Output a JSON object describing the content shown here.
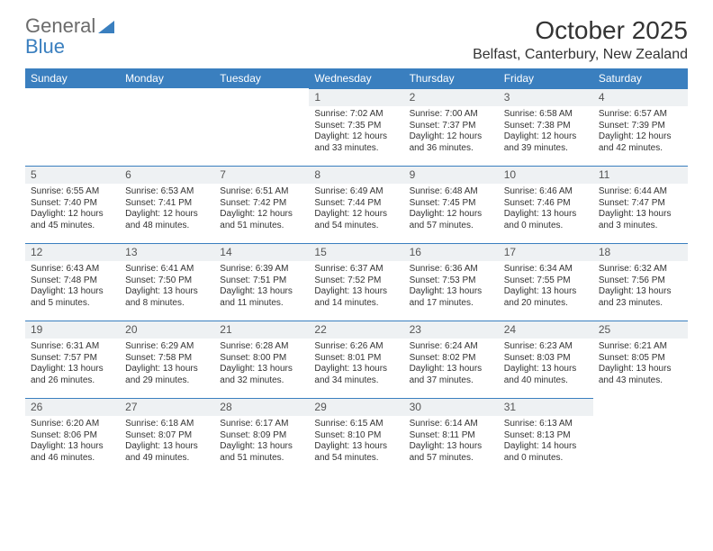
{
  "logo": {
    "text_a": "General",
    "text_b": "Blue"
  },
  "header": {
    "month_title": "October 2025",
    "location": "Belfast, Canterbury, New Zealand"
  },
  "theme": {
    "accent": "#3a7fbf",
    "daynum_bg": "#eef1f3",
    "text": "#333333",
    "logo_gray": "#6b6b6b"
  },
  "day_labels": [
    "Sunday",
    "Monday",
    "Tuesday",
    "Wednesday",
    "Thursday",
    "Friday",
    "Saturday"
  ],
  "weeks": [
    [
      null,
      null,
      null,
      {
        "n": "1",
        "sr": "Sunrise: 7:02 AM",
        "ss": "Sunset: 7:35 PM",
        "d1": "Daylight: 12 hours",
        "d2": "and 33 minutes."
      },
      {
        "n": "2",
        "sr": "Sunrise: 7:00 AM",
        "ss": "Sunset: 7:37 PM",
        "d1": "Daylight: 12 hours",
        "d2": "and 36 minutes."
      },
      {
        "n": "3",
        "sr": "Sunrise: 6:58 AM",
        "ss": "Sunset: 7:38 PM",
        "d1": "Daylight: 12 hours",
        "d2": "and 39 minutes."
      },
      {
        "n": "4",
        "sr": "Sunrise: 6:57 AM",
        "ss": "Sunset: 7:39 PM",
        "d1": "Daylight: 12 hours",
        "d2": "and 42 minutes."
      }
    ],
    [
      {
        "n": "5",
        "sr": "Sunrise: 6:55 AM",
        "ss": "Sunset: 7:40 PM",
        "d1": "Daylight: 12 hours",
        "d2": "and 45 minutes."
      },
      {
        "n": "6",
        "sr": "Sunrise: 6:53 AM",
        "ss": "Sunset: 7:41 PM",
        "d1": "Daylight: 12 hours",
        "d2": "and 48 minutes."
      },
      {
        "n": "7",
        "sr": "Sunrise: 6:51 AM",
        "ss": "Sunset: 7:42 PM",
        "d1": "Daylight: 12 hours",
        "d2": "and 51 minutes."
      },
      {
        "n": "8",
        "sr": "Sunrise: 6:49 AM",
        "ss": "Sunset: 7:44 PM",
        "d1": "Daylight: 12 hours",
        "d2": "and 54 minutes."
      },
      {
        "n": "9",
        "sr": "Sunrise: 6:48 AM",
        "ss": "Sunset: 7:45 PM",
        "d1": "Daylight: 12 hours",
        "d2": "and 57 minutes."
      },
      {
        "n": "10",
        "sr": "Sunrise: 6:46 AM",
        "ss": "Sunset: 7:46 PM",
        "d1": "Daylight: 13 hours",
        "d2": "and 0 minutes."
      },
      {
        "n": "11",
        "sr": "Sunrise: 6:44 AM",
        "ss": "Sunset: 7:47 PM",
        "d1": "Daylight: 13 hours",
        "d2": "and 3 minutes."
      }
    ],
    [
      {
        "n": "12",
        "sr": "Sunrise: 6:43 AM",
        "ss": "Sunset: 7:48 PM",
        "d1": "Daylight: 13 hours",
        "d2": "and 5 minutes."
      },
      {
        "n": "13",
        "sr": "Sunrise: 6:41 AM",
        "ss": "Sunset: 7:50 PM",
        "d1": "Daylight: 13 hours",
        "d2": "and 8 minutes."
      },
      {
        "n": "14",
        "sr": "Sunrise: 6:39 AM",
        "ss": "Sunset: 7:51 PM",
        "d1": "Daylight: 13 hours",
        "d2": "and 11 minutes."
      },
      {
        "n": "15",
        "sr": "Sunrise: 6:37 AM",
        "ss": "Sunset: 7:52 PM",
        "d1": "Daylight: 13 hours",
        "d2": "and 14 minutes."
      },
      {
        "n": "16",
        "sr": "Sunrise: 6:36 AM",
        "ss": "Sunset: 7:53 PM",
        "d1": "Daylight: 13 hours",
        "d2": "and 17 minutes."
      },
      {
        "n": "17",
        "sr": "Sunrise: 6:34 AM",
        "ss": "Sunset: 7:55 PM",
        "d1": "Daylight: 13 hours",
        "d2": "and 20 minutes."
      },
      {
        "n": "18",
        "sr": "Sunrise: 6:32 AM",
        "ss": "Sunset: 7:56 PM",
        "d1": "Daylight: 13 hours",
        "d2": "and 23 minutes."
      }
    ],
    [
      {
        "n": "19",
        "sr": "Sunrise: 6:31 AM",
        "ss": "Sunset: 7:57 PM",
        "d1": "Daylight: 13 hours",
        "d2": "and 26 minutes."
      },
      {
        "n": "20",
        "sr": "Sunrise: 6:29 AM",
        "ss": "Sunset: 7:58 PM",
        "d1": "Daylight: 13 hours",
        "d2": "and 29 minutes."
      },
      {
        "n": "21",
        "sr": "Sunrise: 6:28 AM",
        "ss": "Sunset: 8:00 PM",
        "d1": "Daylight: 13 hours",
        "d2": "and 32 minutes."
      },
      {
        "n": "22",
        "sr": "Sunrise: 6:26 AM",
        "ss": "Sunset: 8:01 PM",
        "d1": "Daylight: 13 hours",
        "d2": "and 34 minutes."
      },
      {
        "n": "23",
        "sr": "Sunrise: 6:24 AM",
        "ss": "Sunset: 8:02 PM",
        "d1": "Daylight: 13 hours",
        "d2": "and 37 minutes."
      },
      {
        "n": "24",
        "sr": "Sunrise: 6:23 AM",
        "ss": "Sunset: 8:03 PM",
        "d1": "Daylight: 13 hours",
        "d2": "and 40 minutes."
      },
      {
        "n": "25",
        "sr": "Sunrise: 6:21 AM",
        "ss": "Sunset: 8:05 PM",
        "d1": "Daylight: 13 hours",
        "d2": "and 43 minutes."
      }
    ],
    [
      {
        "n": "26",
        "sr": "Sunrise: 6:20 AM",
        "ss": "Sunset: 8:06 PM",
        "d1": "Daylight: 13 hours",
        "d2": "and 46 minutes."
      },
      {
        "n": "27",
        "sr": "Sunrise: 6:18 AM",
        "ss": "Sunset: 8:07 PM",
        "d1": "Daylight: 13 hours",
        "d2": "and 49 minutes."
      },
      {
        "n": "28",
        "sr": "Sunrise: 6:17 AM",
        "ss": "Sunset: 8:09 PM",
        "d1": "Daylight: 13 hours",
        "d2": "and 51 minutes."
      },
      {
        "n": "29",
        "sr": "Sunrise: 6:15 AM",
        "ss": "Sunset: 8:10 PM",
        "d1": "Daylight: 13 hours",
        "d2": "and 54 minutes."
      },
      {
        "n": "30",
        "sr": "Sunrise: 6:14 AM",
        "ss": "Sunset: 8:11 PM",
        "d1": "Daylight: 13 hours",
        "d2": "and 57 minutes."
      },
      {
        "n": "31",
        "sr": "Sunrise: 6:13 AM",
        "ss": "Sunset: 8:13 PM",
        "d1": "Daylight: 14 hours",
        "d2": "and 0 minutes."
      },
      null
    ]
  ]
}
